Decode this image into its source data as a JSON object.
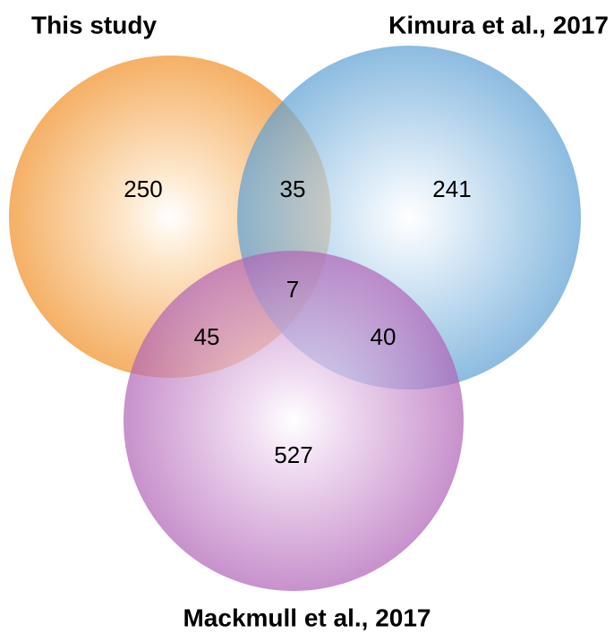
{
  "sets": [
    {
      "label": "This study"
    },
    {
      "label": "Kimura et al., 2017"
    },
    {
      "label": "Mackmull et al., 2017"
    }
  ],
  "regions": [
    250,
    35,
    241,
    7,
    45,
    40,
    527
  ]
}
